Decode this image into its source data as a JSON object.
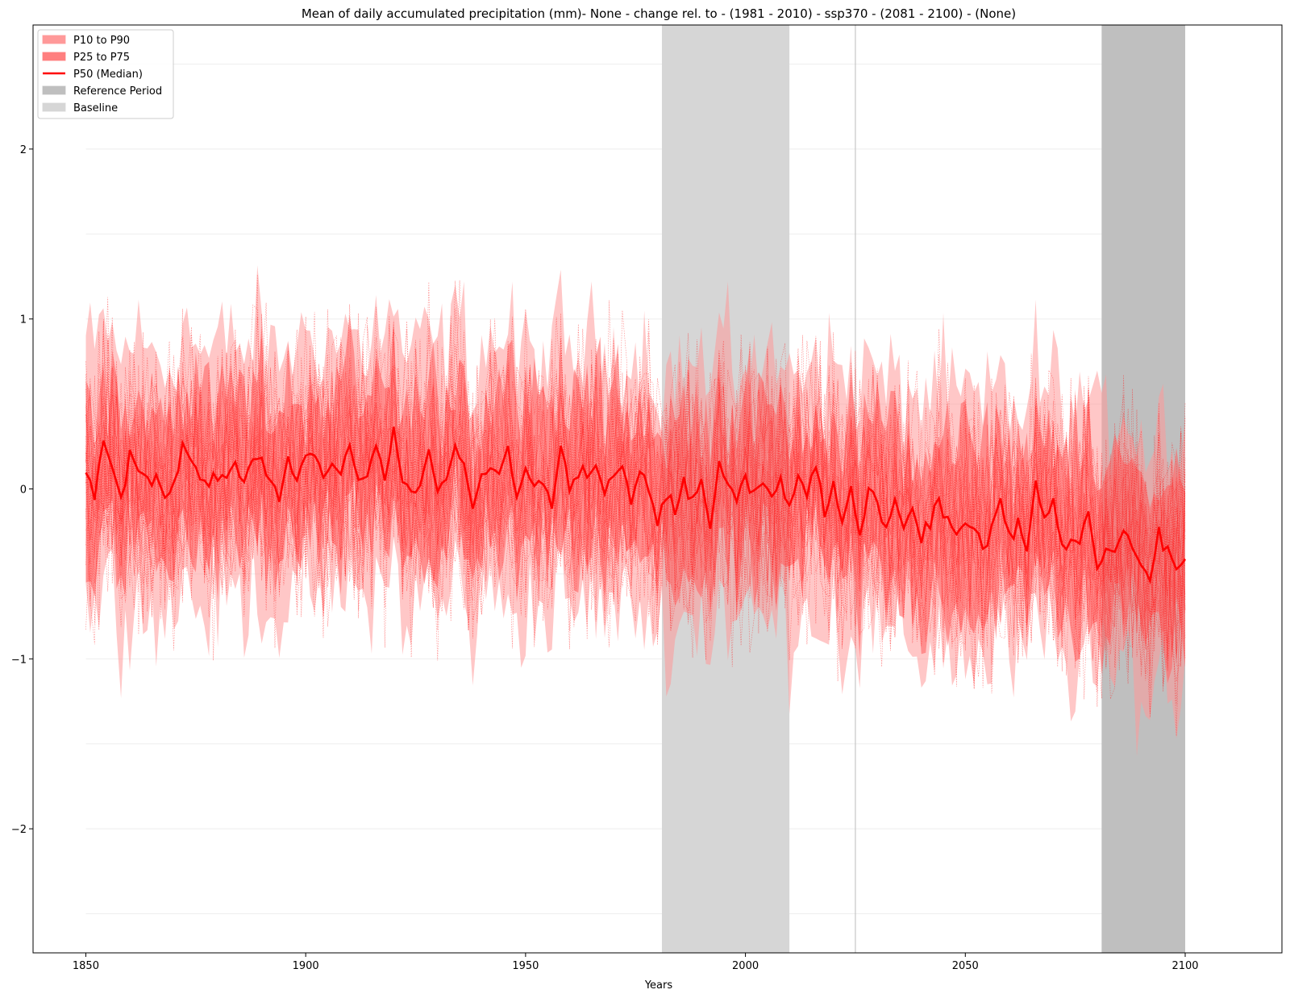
{
  "chart_data": {
    "type": "line",
    "title": "Mean of daily accumulated precipitation (mm)- None - change rel. to - (1981 - 2010)  - ssp370  - (2081 - 2100) - (None)",
    "xlabel": "Years",
    "ylabel": "",
    "xlim": [
      1838,
      2122
    ],
    "ylim": [
      -2.73,
      2.73
    ],
    "x_ticks": [
      1850,
      1900,
      1950,
      2000,
      2050,
      2100
    ],
    "y_ticks": [
      -2,
      -1,
      0,
      1,
      2
    ],
    "y_tick_labels": [
      "−2",
      "−1",
      "0",
      "1",
      "2"
    ],
    "grid": "horizontal faint lines at 0.5 steps",
    "legend_position": "top-left",
    "legend": [
      {
        "label": "P10 to P90",
        "color": "#ff9999"
      },
      {
        "label": "P25 to P75",
        "color": "#ff7f7f"
      },
      {
        "label": "P50 (Median)",
        "color": "#ff0000"
      },
      {
        "label": "Reference Period",
        "color": "#bfbfbf"
      },
      {
        "label": "Baseline",
        "color": "#d6d6d6"
      }
    ],
    "baseline_period": [
      1981,
      2010
    ],
    "reference_period": [
      2081,
      2100
    ],
    "vertical_marker": 2025,
    "median": {
      "x": [
        1850,
        1852,
        1854,
        1856,
        1858,
        1860,
        1862,
        1864,
        1866,
        1868,
        1870,
        1872,
        1874,
        1876,
        1878,
        1880,
        1882,
        1884,
        1886,
        1888,
        1890,
        1892,
        1894,
        1896,
        1898,
        1900,
        1902,
        1904,
        1906,
        1908,
        1910,
        1912,
        1914,
        1916,
        1918,
        1920,
        1922,
        1924,
        1926,
        1928,
        1930,
        1932,
        1934,
        1936,
        1938,
        1940,
        1942,
        1944,
        1946,
        1948,
        1950,
        1952,
        1954,
        1956,
        1958,
        1960,
        1962,
        1964,
        1966,
        1968,
        1970,
        1972,
        1974,
        1976,
        1978,
        1980,
        1982,
        1984,
        1986,
        1988,
        1990,
        1992,
        1994,
        1996,
        1998,
        2000,
        2002,
        2004,
        2006,
        2008,
        2010,
        2012,
        2014,
        2016,
        2018,
        2020,
        2022,
        2024,
        2026,
        2028,
        2030,
        2032,
        2034,
        2036,
        2038,
        2040,
        2042,
        2044,
        2046,
        2048,
        2050,
        2052,
        2054,
        2056,
        2058,
        2060,
        2062,
        2064,
        2066,
        2068,
        2070,
        2072,
        2074,
        2076,
        2078,
        2080,
        2082,
        2084,
        2086,
        2088,
        2090,
        2092,
        2094,
        2096,
        2098,
        2100
      ],
      "y": [
        0.12,
        -0.02,
        0.29,
        0.12,
        -0.04,
        0.18,
        0.12,
        0.02,
        0.1,
        -0.05,
        0.02,
        0.24,
        0.14,
        0.06,
        0.01,
        0.11,
        0.05,
        0.19,
        0.02,
        0.15,
        0.2,
        0.04,
        -0.02,
        0.17,
        0.05,
        0.15,
        0.21,
        0.08,
        0.14,
        0.09,
        0.26,
        0.03,
        0.11,
        0.25,
        0.05,
        0.37,
        0.08,
        -0.06,
        0.06,
        0.23,
        0.03,
        0.05,
        0.29,
        0.15,
        -0.14,
        0.08,
        0.14,
        0.06,
        0.25,
        -0.07,
        0.09,
        0.0,
        0.06,
        -0.09,
        0.26,
        -0.04,
        0.1,
        0.06,
        0.15,
        -0.04,
        0.09,
        0.12,
        -0.09,
        0.11,
        0.02,
        -0.17,
        -0.02,
        -0.16,
        0.05,
        -0.08,
        0.03,
        -0.2,
        0.17,
        0.0,
        -0.08,
        0.08,
        -0.04,
        0.02,
        -0.08,
        0.04,
        -0.15,
        0.09,
        -0.03,
        0.16,
        -0.14,
        0.05,
        -0.2,
        0.03,
        -0.26,
        0.04,
        -0.08,
        -0.21,
        -0.11,
        -0.2,
        -0.12,
        -0.29,
        -0.19,
        -0.06,
        -0.21,
        -0.28,
        -0.18,
        -0.23,
        -0.36,
        -0.24,
        -0.04,
        -0.3,
        -0.2,
        -0.33,
        0.02,
        -0.19,
        -0.05,
        -0.34,
        -0.3,
        -0.33,
        -0.13,
        -0.45,
        -0.37,
        -0.36,
        -0.23,
        -0.32,
        -0.42,
        -0.55,
        -0.26,
        -0.38,
        -0.5,
        -0.38
      ],
      "color": "#ff0000"
    },
    "band_p25_p75": {
      "lower_offset": -0.45,
      "upper_offset": 0.45,
      "color": "#ff6666"
    },
    "band_p10_p90": {
      "lower_offset": -0.75,
      "upper_offset": 0.75,
      "color": "#ff9999"
    },
    "member_spread": {
      "typical_max": 1.6,
      "typical_min": -1.5,
      "member_count": 30
    }
  }
}
